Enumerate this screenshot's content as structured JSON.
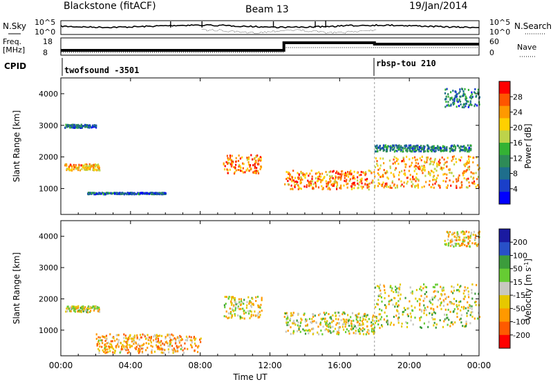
{
  "header": {
    "title": "Blackstone (fitACF)",
    "beam": "Beam 13",
    "date": "19/Jan/2014"
  },
  "noise_panel": {
    "left_label": "N.Sky",
    "right_label": "N.Search",
    "left_ticks": [
      "10^5",
      "10^0"
    ],
    "right_ticks": [
      "10^5",
      "10^0"
    ]
  },
  "freq_panel": {
    "left_label_line1": "Freq.",
    "left_label_line2": "[MHz]",
    "left_ticks": [
      "18",
      "8"
    ],
    "right_label": "Nave",
    "right_ticks": [
      "60",
      "0"
    ]
  },
  "cpid_panel": {
    "label": "CPID",
    "modes": [
      {
        "name": "twofsound -3501",
        "start_hour": 0
      },
      {
        "name": "rbsp-tou 210",
        "start_hour": 18
      }
    ]
  },
  "colorbars": {
    "power": {
      "label": "Power [dB]",
      "ticks": [
        "28",
        "24",
        "20",
        "16",
        "12",
        "8",
        "4"
      ],
      "colors": [
        "#ff0000",
        "#ff5500",
        "#ff9900",
        "#ffd000",
        "#bdd34a",
        "#34b234",
        "#2e8b57",
        "#1e6e8c",
        "#1a3fc9",
        "#0000ff"
      ]
    },
    "velocity": {
      "label_line1": "Velocity",
      "label_line2": "[m s",
      "label_sup": "-1",
      "label_close": "]",
      "ticks": [
        "200",
        "100",
        "50",
        "15",
        "-15",
        "-50",
        "-100",
        "-200"
      ],
      "colors": [
        "#1a1aa0",
        "#2850c8",
        "#3c9c3c",
        "#66cc33",
        "#c8c8c0",
        "#e6c800",
        "#ff9900",
        "#ff5a00",
        "#ff0000"
      ]
    }
  },
  "axes": {
    "ylabel": "Slant Range [km]",
    "yticks": [
      "4000",
      "3000",
      "2000",
      "1000"
    ],
    "xticks": [
      "00:00",
      "04:00",
      "08:00",
      "12:00",
      "16:00",
      "20:00",
      "00:00"
    ],
    "xlabel": "Time UT"
  },
  "chart_data": {
    "type": "heatmap",
    "title": "Blackstone (fitACF)",
    "xlabel": "Time UT",
    "ylabel": "Slant Range [km]",
    "xlim": [
      0,
      24
    ],
    "ylim": [
      180,
      4500
    ],
    "panels": [
      {
        "name": "Power [dB]",
        "colorbar_range": [
          0,
          30
        ],
        "echo_bands": [
          {
            "t_start": 0.2,
            "t_end": 2.2,
            "range_start": 1600,
            "range_end": 1800,
            "power": 22
          },
          {
            "t_start": 1.5,
            "t_end": 6.0,
            "range_start": 850,
            "range_end": 900,
            "power": 6
          },
          {
            "t_start": 9.3,
            "t_end": 11.5,
            "range_start": 1500,
            "range_end": 2100,
            "power": 24
          },
          {
            "t_start": 12.8,
            "t_end": 18.0,
            "range_start": 1000,
            "range_end": 1600,
            "power": 24
          },
          {
            "t_start": 18.0,
            "t_end": 24.0,
            "range_start": 1050,
            "range_end": 2050,
            "power": 22
          },
          {
            "t_start": 18.0,
            "t_end": 23.5,
            "range_start": 2200,
            "range_end": 2400,
            "power": 8
          },
          {
            "t_start": 22.0,
            "t_end": 24.0,
            "range_start": 3600,
            "range_end": 4200,
            "power": 8
          },
          {
            "t_start": 0.2,
            "t_end": 2.0,
            "range_start": 2950,
            "range_end": 3050,
            "power": 6
          }
        ]
      },
      {
        "name": "Velocity [m s-1]",
        "colorbar_range": [
          -200,
          200
        ],
        "echo_bands": [
          {
            "t_start": 0.2,
            "t_end": 2.2,
            "range_start": 1600,
            "range_end": 1800,
            "velocity": -10
          },
          {
            "t_start": 2.0,
            "t_end": 8.0,
            "range_start": 300,
            "range_end": 900,
            "velocity": -60
          },
          {
            "t_start": 9.3,
            "t_end": 11.5,
            "range_start": 1400,
            "range_end": 2100,
            "velocity": -15
          },
          {
            "t_start": 12.8,
            "t_end": 18.0,
            "range_start": 900,
            "range_end": 1600,
            "velocity": -15
          },
          {
            "t_start": 18.0,
            "t_end": 24.0,
            "range_start": 1100,
            "range_end": 2500,
            "velocity": 0
          },
          {
            "t_start": 22.0,
            "t_end": 24.0,
            "range_start": 3700,
            "range_end": 4200,
            "velocity": -40
          }
        ]
      }
    ]
  }
}
